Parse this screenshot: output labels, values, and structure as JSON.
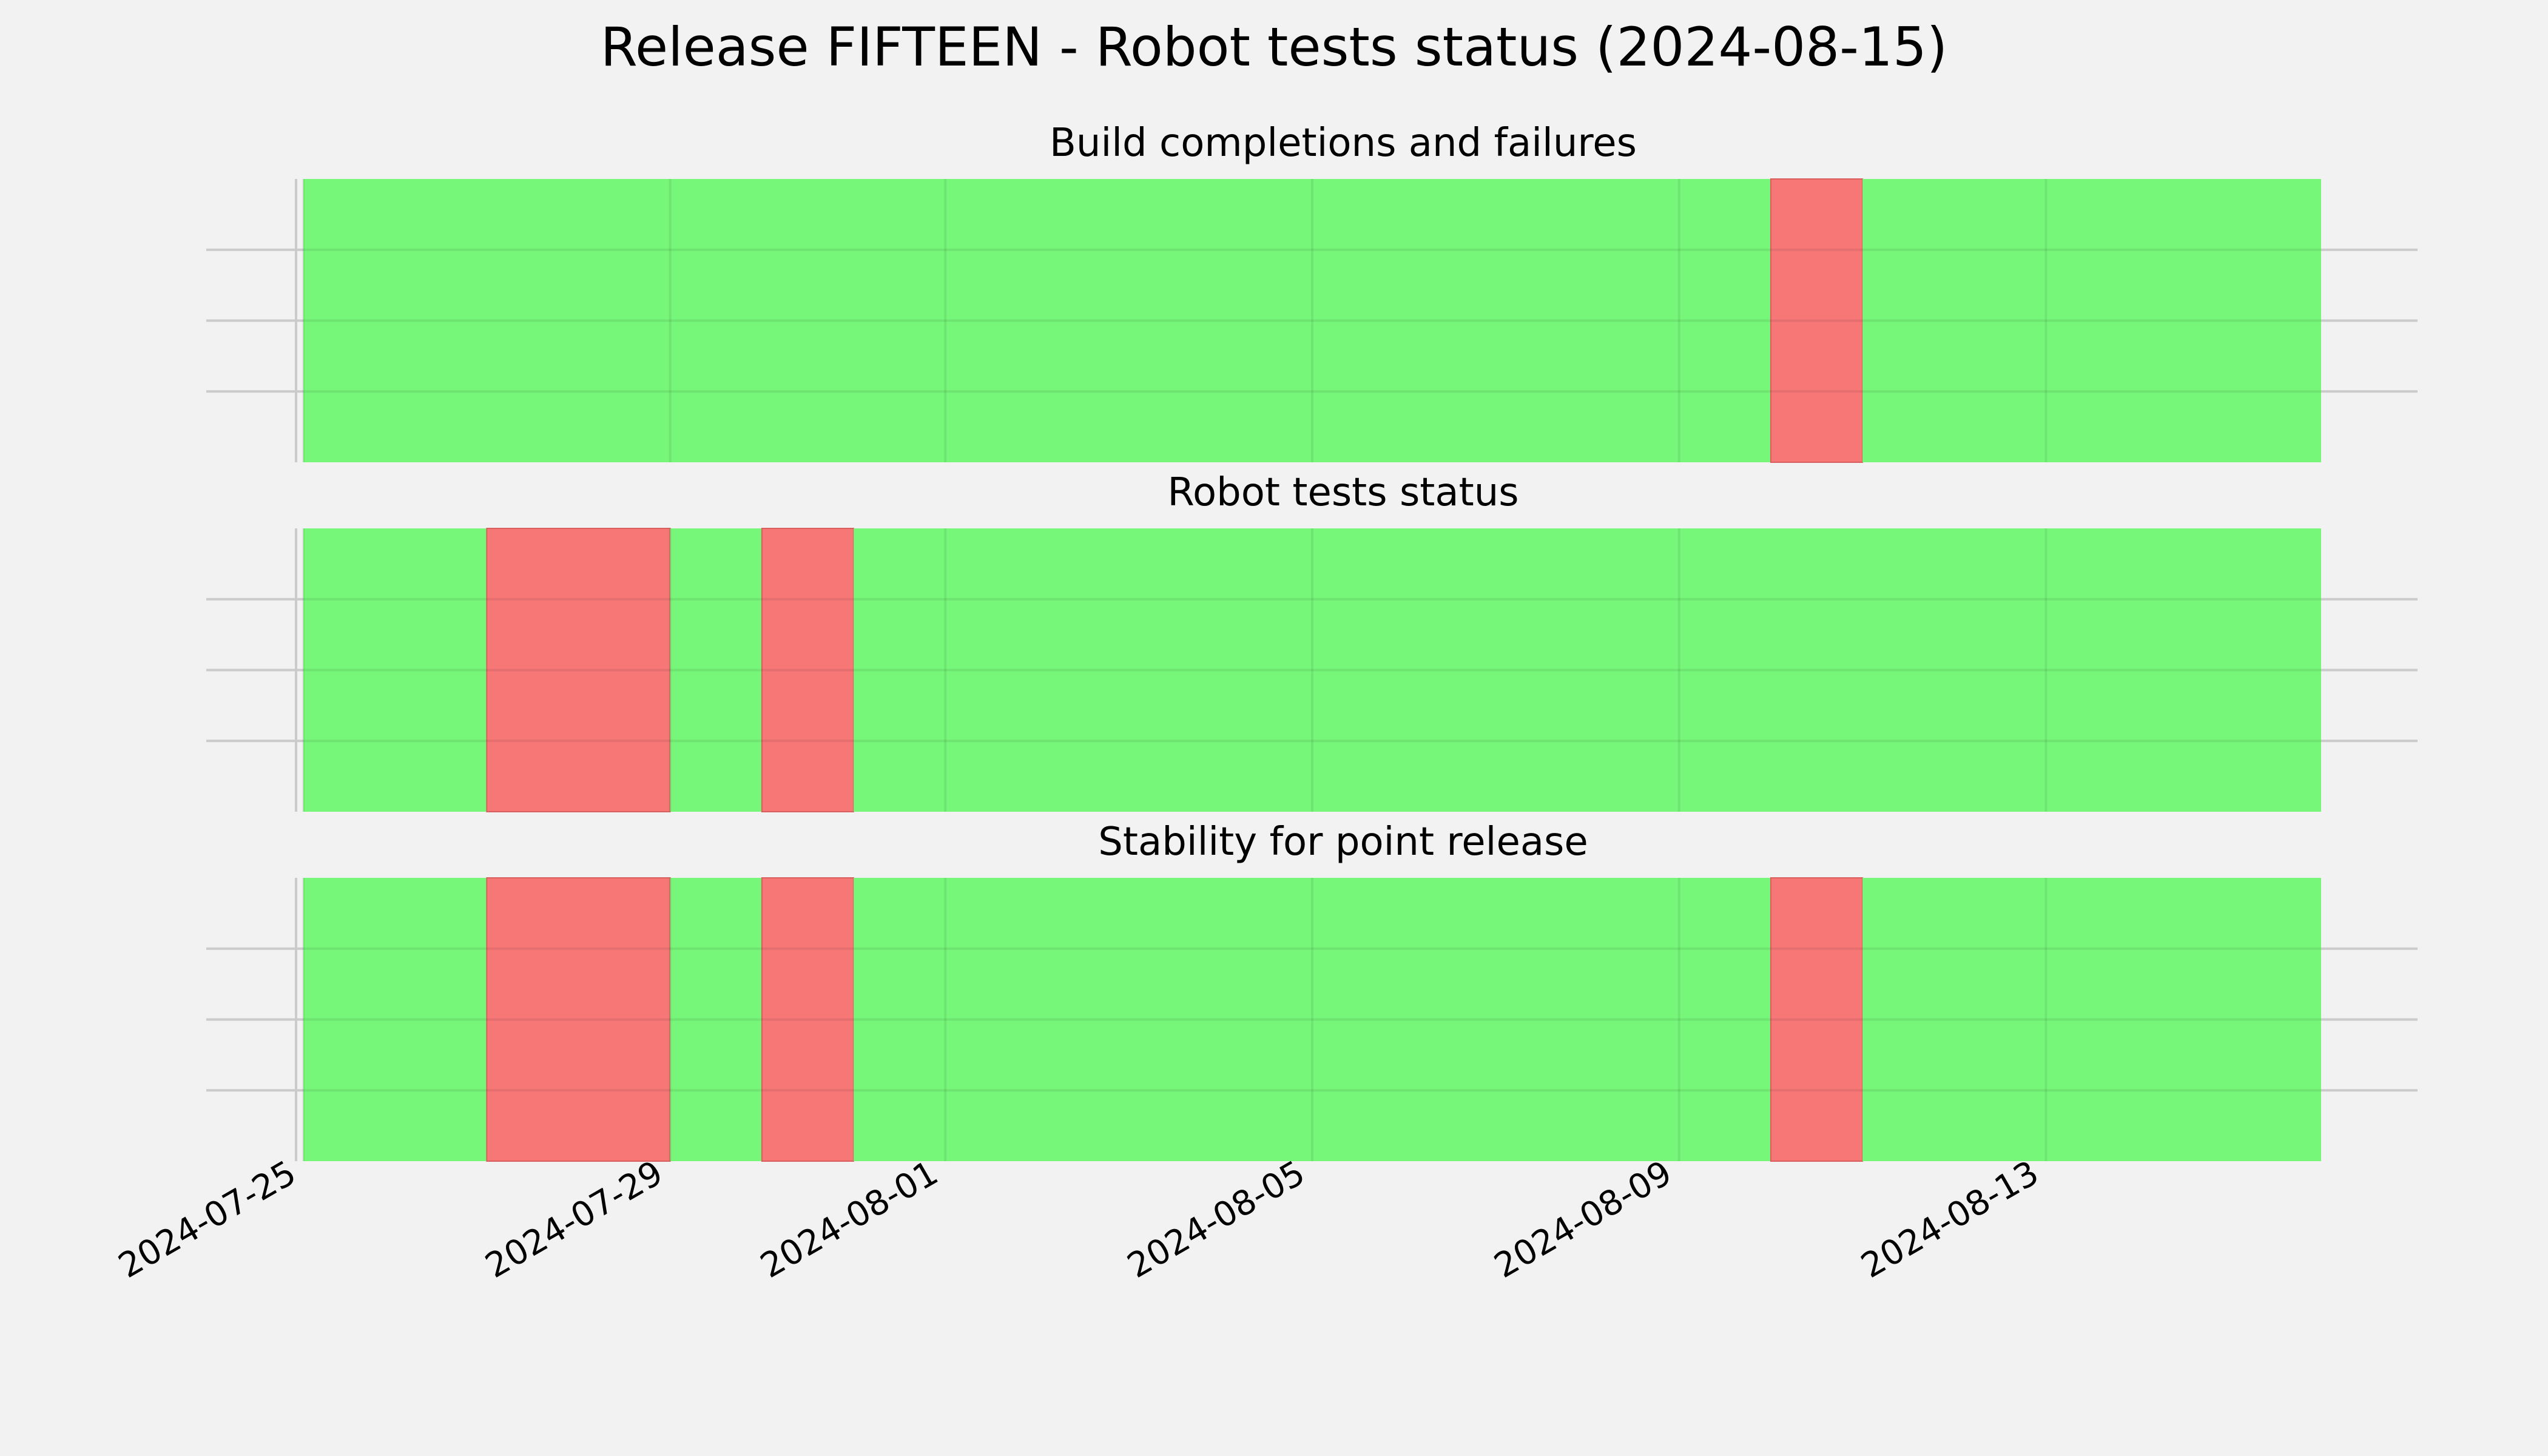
{
  "chart_data": {
    "type": "timeline",
    "title": "Release FIFTEEN - Robot tests status (2024-08-15)",
    "x_axis": {
      "type": "date",
      "tick_labels": [
        "2024-07-25",
        "2024-07-29",
        "2024-08-01",
        "2024-08-05",
        "2024-08-09",
        "2024-08-13"
      ],
      "range": [
        "2024-07-25",
        "2024-08-16"
      ]
    },
    "grid": true,
    "colors": {
      "success": "#77f77a",
      "failure": "#f77777",
      "background": "#f2f2f2"
    },
    "panels": [
      {
        "title": "Build completions and failures",
        "segments": [
          {
            "start": "2024-07-25",
            "end": "2024-08-10",
            "status": "success"
          },
          {
            "start": "2024-08-10",
            "end": "2024-08-11",
            "status": "failure"
          },
          {
            "start": "2024-08-11",
            "end": "2024-08-16",
            "status": "success"
          }
        ]
      },
      {
        "title": "Robot tests status",
        "segments": [
          {
            "start": "2024-07-25",
            "end": "2024-07-27",
            "status": "success"
          },
          {
            "start": "2024-07-27",
            "end": "2024-07-29",
            "status": "failure"
          },
          {
            "start": "2024-07-29",
            "end": "2024-07-30",
            "status": "success"
          },
          {
            "start": "2024-07-30",
            "end": "2024-07-31",
            "status": "failure"
          },
          {
            "start": "2024-07-31",
            "end": "2024-08-16",
            "status": "success"
          }
        ]
      },
      {
        "title": "Stability for point release",
        "segments": [
          {
            "start": "2024-07-25",
            "end": "2024-07-27",
            "status": "success"
          },
          {
            "start": "2024-07-27",
            "end": "2024-07-29",
            "status": "failure"
          },
          {
            "start": "2024-07-29",
            "end": "2024-07-30",
            "status": "success"
          },
          {
            "start": "2024-07-30",
            "end": "2024-07-31",
            "status": "failure"
          },
          {
            "start": "2024-07-31",
            "end": "2024-08-10",
            "status": "success"
          },
          {
            "start": "2024-08-10",
            "end": "2024-08-11",
            "status": "failure"
          },
          {
            "start": "2024-08-11",
            "end": "2024-08-16",
            "status": "success"
          }
        ]
      }
    ]
  }
}
